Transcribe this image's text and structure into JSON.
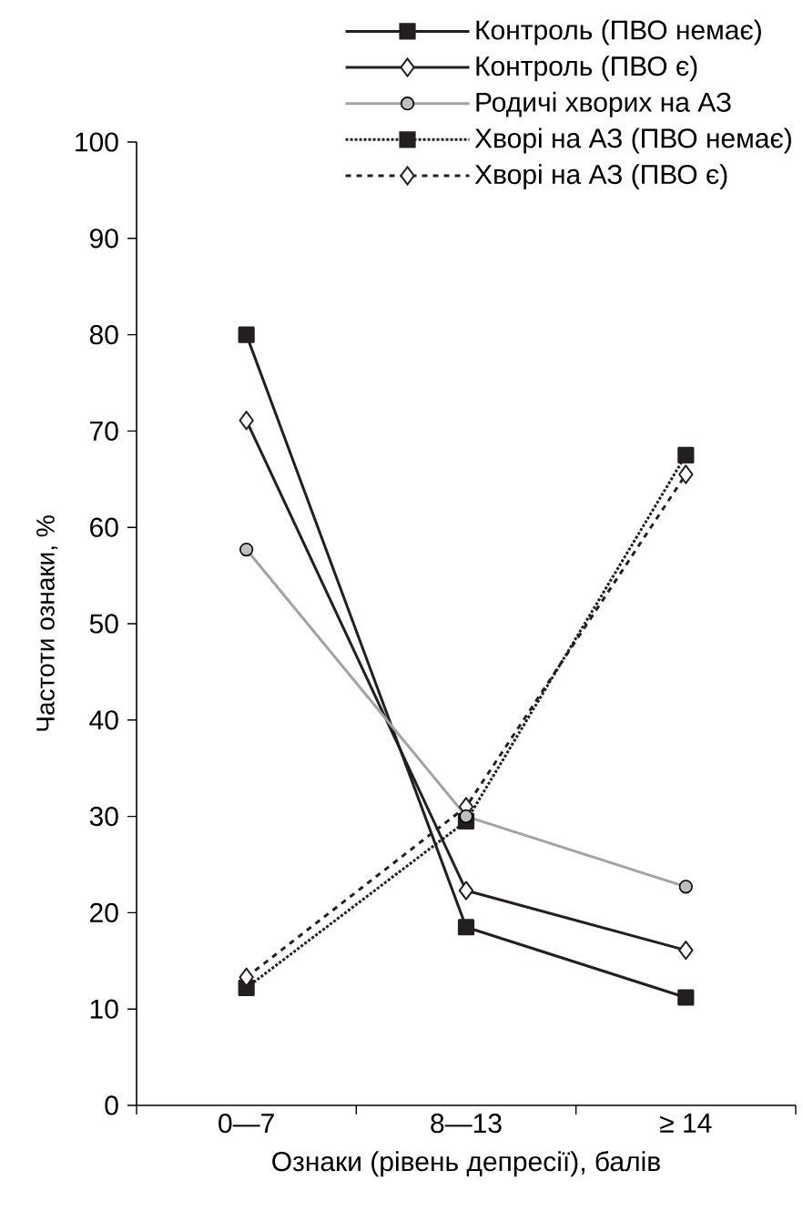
{
  "chart_data": {
    "type": "line",
    "xlabel": "Ознаки (рівень депресії), балів",
    "ylabel": "Частоти ознаки, %",
    "categories": [
      "0—7",
      "8—13",
      "≥ 14"
    ],
    "series": [
      {
        "name": "Контроль (ПВО немає)",
        "color": "#231f20",
        "values": [
          80,
          18.5,
          11.2
        ],
        "marker": "square",
        "line_style": "solid"
      },
      {
        "name": "Контроль (ПВО є)",
        "color": "#231f20",
        "values": [
          71.1,
          22.3,
          16.1
        ],
        "marker": "diamond",
        "line_style": "solid"
      },
      {
        "name": "Родичі хворих на АЗ",
        "color": "#a3a3a3",
        "values": [
          57.7,
          30,
          22.7
        ],
        "marker": "circle",
        "line_style": "solid"
      },
      {
        "name": "Хворі на АЗ (ПВО немає)",
        "color": "#231f20",
        "values": [
          12.2,
          29.5,
          67.5
        ],
        "marker": "square",
        "line_style": "dotted"
      },
      {
        "name": "Хворі на АЗ (ПВО є)",
        "color": "#231f20",
        "values": [
          13.3,
          31,
          65.5
        ],
        "marker": "diamond",
        "line_style": "dashed"
      }
    ],
    "ylim": [
      0,
      100
    ],
    "yticks": [
      0,
      10,
      20,
      30,
      40,
      50,
      60,
      70,
      80,
      90,
      100
    ],
    "grid": false,
    "legend": "top right"
  }
}
